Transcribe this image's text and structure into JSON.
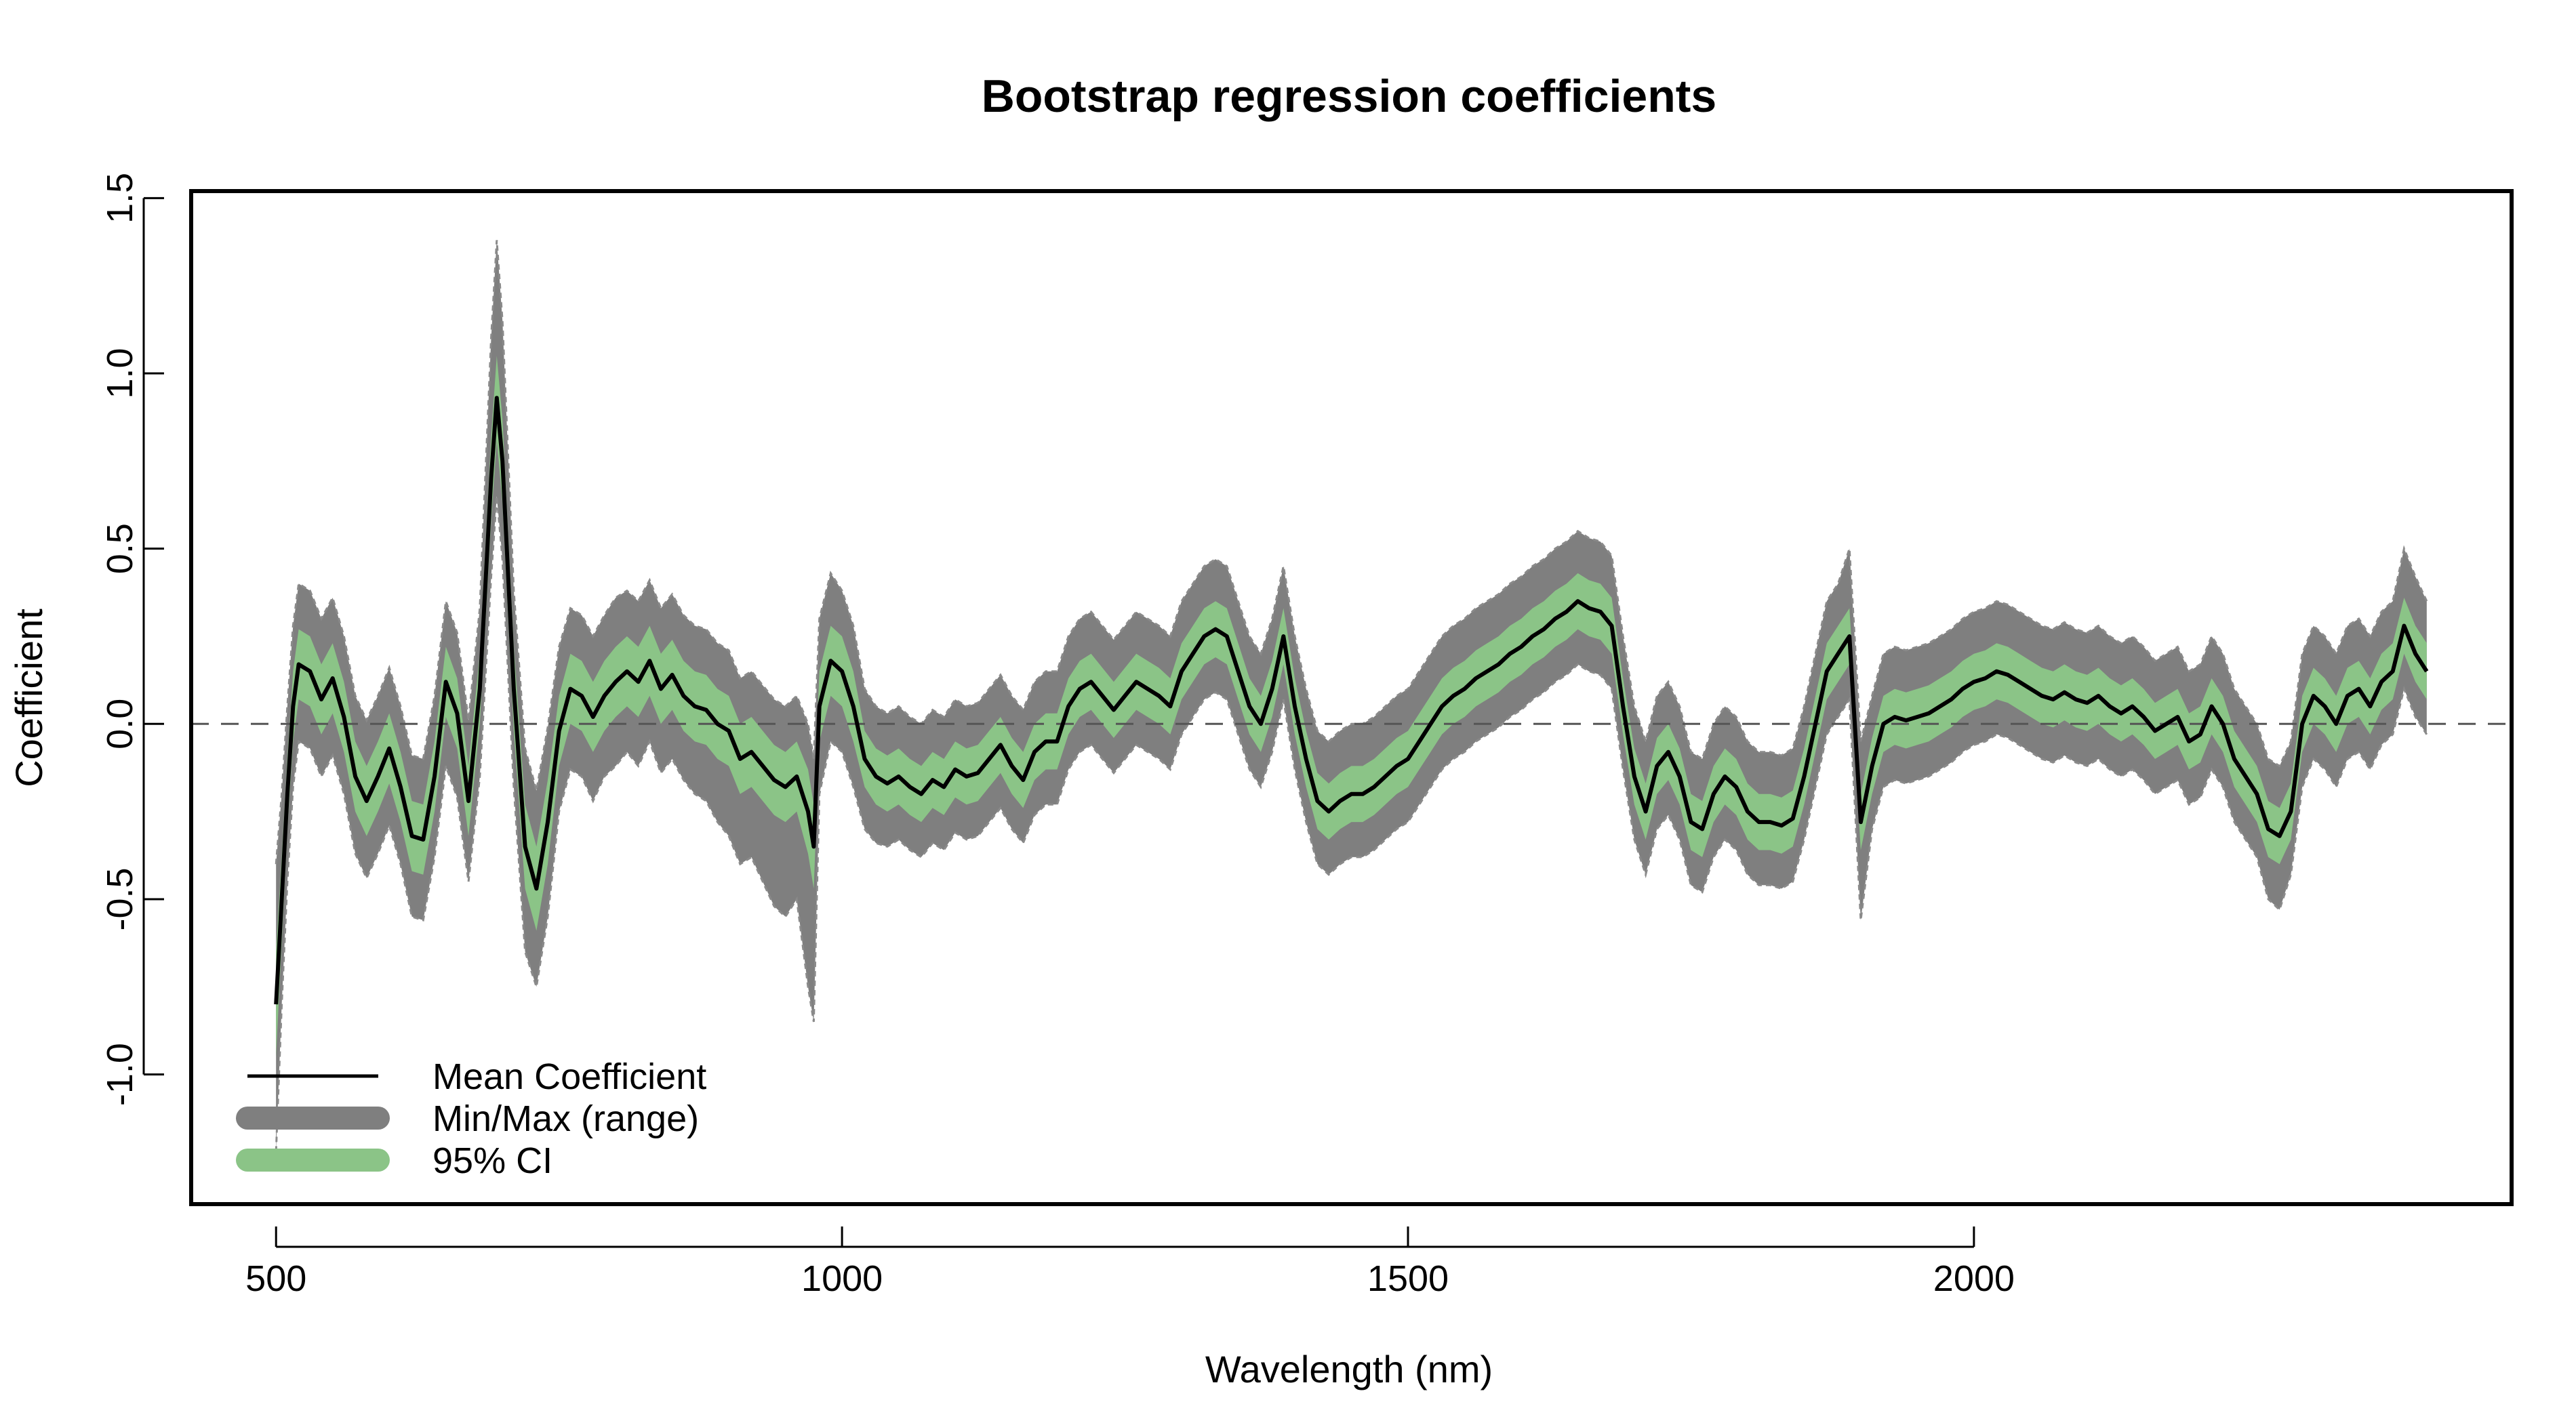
{
  "chart_data": {
    "type": "line",
    "title": "Bootstrap regression coefficients",
    "xlabel": "Wavelength (nm)",
    "ylabel": "Coefficient",
    "xlim": [
      425,
      2475
    ],
    "ylim": [
      -1.37,
      1.52
    ],
    "x_ticks": [
      500,
      1000,
      1500,
      2000
    ],
    "y_ticks": [
      -1.0,
      -0.5,
      0.0,
      0.5,
      1.0,
      1.5
    ],
    "x_tick_labels": [
      "500",
      "1000",
      "1500",
      "2000"
    ],
    "y_tick_labels": [
      "-1.0",
      "-0.5",
      "0.0",
      "0.5",
      "1.0",
      "1.5"
    ],
    "reference_line": {
      "y": 0.0,
      "style": "dashed"
    },
    "grid": false,
    "legend_position": "bottom-left",
    "legend": [
      {
        "label": "Mean Coefficient",
        "color": "#000000"
      },
      {
        "label": "Min/Max (range)",
        "color": "#7f7f7f"
      },
      {
        "label": "95% CI",
        "color": "#8bc487"
      }
    ],
    "colors": {
      "mean": "#000000",
      "range": "#7f7f7f",
      "ci": "#8bc487"
    },
    "x": [
      500,
      505,
      510,
      515,
      520,
      530,
      540,
      550,
      560,
      570,
      580,
      590,
      600,
      610,
      620,
      630,
      640,
      650,
      660,
      670,
      680,
      690,
      695,
      700,
      710,
      720,
      730,
      740,
      750,
      760,
      770,
      780,
      790,
      800,
      810,
      820,
      830,
      840,
      850,
      860,
      870,
      880,
      890,
      900,
      910,
      920,
      930,
      940,
      950,
      960,
      970,
      975,
      980,
      990,
      1000,
      1010,
      1020,
      1030,
      1040,
      1050,
      1060,
      1070,
      1080,
      1090,
      1100,
      1110,
      1120,
      1130,
      1140,
      1150,
      1160,
      1170,
      1180,
      1190,
      1200,
      1210,
      1220,
      1230,
      1240,
      1250,
      1260,
      1270,
      1280,
      1290,
      1300,
      1310,
      1320,
      1330,
      1340,
      1350,
      1360,
      1370,
      1380,
      1390,
      1400,
      1410,
      1420,
      1430,
      1440,
      1450,
      1460,
      1470,
      1480,
      1490,
      1500,
      1510,
      1520,
      1530,
      1540,
      1550,
      1560,
      1570,
      1580,
      1590,
      1600,
      1610,
      1620,
      1630,
      1640,
      1650,
      1660,
      1670,
      1680,
      1690,
      1700,
      1710,
      1720,
      1730,
      1740,
      1750,
      1760,
      1770,
      1780,
      1790,
      1800,
      1810,
      1820,
      1830,
      1840,
      1850,
      1860,
      1870,
      1880,
      1890,
      1900,
      1910,
      1920,
      1930,
      1940,
      1950,
      1960,
      1970,
      1980,
      1990,
      2000,
      2010,
      2020,
      2030,
      2040,
      2050,
      2060,
      2070,
      2080,
      2090,
      2100,
      2110,
      2120,
      2130,
      2140,
      2150,
      2160,
      2170,
      2180,
      2190,
      2200,
      2210,
      2220,
      2230,
      2240,
      2250,
      2260,
      2270,
      2280,
      2290,
      2300,
      2310,
      2320,
      2330,
      2340,
      2350,
      2360,
      2370,
      2380,
      2390,
      2400
    ],
    "series": [
      {
        "name": "Mean Coefficient",
        "values": [
          -0.8,
          -0.5,
          -0.2,
          0.05,
          0.17,
          0.15,
          0.07,
          0.13,
          0.02,
          -0.15,
          -0.22,
          -0.15,
          -0.07,
          -0.18,
          -0.32,
          -0.33,
          -0.15,
          0.12,
          0.03,
          -0.22,
          0.1,
          0.7,
          0.93,
          0.75,
          0.1,
          -0.35,
          -0.47,
          -0.28,
          -0.02,
          0.1,
          0.08,
          0.02,
          0.08,
          0.12,
          0.15,
          0.12,
          0.18,
          0.1,
          0.14,
          0.08,
          0.05,
          0.04,
          0.0,
          -0.02,
          -0.1,
          -0.08,
          -0.12,
          -0.16,
          -0.18,
          -0.15,
          -0.25,
          -0.35,
          0.05,
          0.18,
          0.15,
          0.05,
          -0.1,
          -0.15,
          -0.17,
          -0.15,
          -0.18,
          -0.2,
          -0.16,
          -0.18,
          -0.13,
          -0.15,
          -0.14,
          -0.1,
          -0.06,
          -0.12,
          -0.16,
          -0.08,
          -0.05,
          -0.05,
          0.05,
          0.1,
          0.12,
          0.08,
          0.04,
          0.08,
          0.12,
          0.1,
          0.08,
          0.05,
          0.15,
          0.2,
          0.25,
          0.27,
          0.25,
          0.15,
          0.05,
          0.0,
          0.1,
          0.25,
          0.05,
          -0.1,
          -0.22,
          -0.25,
          -0.22,
          -0.2,
          -0.2,
          -0.18,
          -0.15,
          -0.12,
          -0.1,
          -0.05,
          0.0,
          0.05,
          0.08,
          0.1,
          0.13,
          0.15,
          0.17,
          0.2,
          0.22,
          0.25,
          0.27,
          0.3,
          0.32,
          0.35,
          0.33,
          0.32,
          0.28,
          0.05,
          -0.15,
          -0.25,
          -0.12,
          -0.08,
          -0.15,
          -0.28,
          -0.3,
          -0.2,
          -0.15,
          -0.18,
          -0.25,
          -0.28,
          -0.28,
          -0.29,
          -0.27,
          -0.15,
          0.0,
          0.15,
          0.2,
          0.25,
          -0.28,
          -0.12,
          0.0,
          0.02,
          0.01,
          0.02,
          0.03,
          0.05,
          0.07,
          0.1,
          0.12,
          0.13,
          0.15,
          0.14,
          0.12,
          0.1,
          0.08,
          0.07,
          0.09,
          0.07,
          0.06,
          0.08,
          0.05,
          0.03,
          0.05,
          0.02,
          -0.02,
          0.0,
          0.02,
          -0.05,
          -0.03,
          0.05,
          0.0,
          -0.1,
          -0.15,
          -0.2,
          -0.3,
          -0.32,
          -0.25,
          0.0,
          0.08,
          0.05,
          0.0,
          0.08,
          0.1,
          0.05,
          0.12,
          0.15,
          0.28,
          0.2,
          0.15
        ]
      },
      {
        "name": "95% CI",
        "lower": [
          -0.95,
          -0.62,
          -0.3,
          -0.05,
          0.07,
          0.05,
          -0.03,
          0.03,
          -0.08,
          -0.25,
          -0.32,
          -0.25,
          -0.17,
          -0.28,
          -0.42,
          -0.43,
          -0.25,
          0.02,
          -0.07,
          -0.32,
          0.0,
          0.58,
          0.81,
          0.63,
          -0.02,
          -0.47,
          -0.59,
          -0.4,
          -0.12,
          0.0,
          -0.02,
          -0.08,
          -0.02,
          0.02,
          0.05,
          0.02,
          0.08,
          0.0,
          0.04,
          -0.02,
          -0.05,
          -0.06,
          -0.1,
          -0.12,
          -0.2,
          -0.18,
          -0.22,
          -0.26,
          -0.28,
          -0.25,
          -0.37,
          -0.47,
          -0.05,
          0.08,
          0.05,
          -0.05,
          -0.18,
          -0.23,
          -0.25,
          -0.23,
          -0.26,
          -0.28,
          -0.24,
          -0.26,
          -0.21,
          -0.23,
          -0.22,
          -0.18,
          -0.14,
          -0.2,
          -0.24,
          -0.16,
          -0.13,
          -0.13,
          -0.03,
          0.02,
          0.04,
          0.0,
          -0.04,
          0.0,
          0.04,
          0.02,
          0.0,
          -0.03,
          0.07,
          0.12,
          0.17,
          0.19,
          0.17,
          0.07,
          -0.03,
          -0.08,
          0.02,
          0.17,
          -0.03,
          -0.18,
          -0.3,
          -0.33,
          -0.3,
          -0.28,
          -0.28,
          -0.26,
          -0.23,
          -0.2,
          -0.18,
          -0.13,
          -0.08,
          -0.03,
          0.0,
          0.02,
          0.05,
          0.07,
          0.09,
          0.12,
          0.14,
          0.17,
          0.19,
          0.22,
          0.24,
          0.27,
          0.25,
          0.24,
          0.2,
          -0.03,
          -0.23,
          -0.33,
          -0.2,
          -0.16,
          -0.23,
          -0.36,
          -0.38,
          -0.28,
          -0.23,
          -0.26,
          -0.33,
          -0.36,
          -0.36,
          -0.37,
          -0.35,
          -0.23,
          -0.08,
          0.07,
          0.12,
          0.17,
          -0.36,
          -0.2,
          -0.08,
          -0.06,
          -0.07,
          -0.06,
          -0.05,
          -0.03,
          -0.01,
          0.02,
          0.04,
          0.05,
          0.07,
          0.06,
          0.04,
          0.02,
          0.0,
          -0.01,
          0.01,
          -0.01,
          -0.02,
          0.0,
          -0.03,
          -0.05,
          -0.03,
          -0.06,
          -0.1,
          -0.08,
          -0.06,
          -0.13,
          -0.11,
          -0.03,
          -0.08,
          -0.18,
          -0.23,
          -0.28,
          -0.38,
          -0.4,
          -0.33,
          -0.08,
          0.0,
          -0.03,
          -0.08,
          0.0,
          0.02,
          -0.03,
          0.04,
          0.07,
          0.2,
          0.12,
          0.07
        ],
        "upper": [
          -0.65,
          -0.38,
          -0.1,
          0.15,
          0.27,
          0.25,
          0.17,
          0.23,
          0.12,
          -0.05,
          -0.12,
          -0.05,
          0.03,
          -0.08,
          -0.22,
          -0.23,
          -0.05,
          0.22,
          0.13,
          -0.12,
          0.2,
          0.82,
          1.05,
          0.87,
          0.22,
          -0.23,
          -0.35,
          -0.16,
          0.08,
          0.2,
          0.18,
          0.12,
          0.18,
          0.22,
          0.25,
          0.22,
          0.28,
          0.2,
          0.24,
          0.18,
          0.15,
          0.14,
          0.1,
          0.08,
          0.0,
          0.02,
          -0.02,
          -0.06,
          -0.08,
          -0.05,
          -0.13,
          -0.23,
          0.15,
          0.28,
          0.25,
          0.15,
          -0.02,
          -0.07,
          -0.09,
          -0.07,
          -0.1,
          -0.12,
          -0.08,
          -0.1,
          -0.05,
          -0.07,
          -0.06,
          -0.02,
          0.02,
          -0.04,
          -0.08,
          0.0,
          0.03,
          0.03,
          0.13,
          0.18,
          0.2,
          0.16,
          0.12,
          0.16,
          0.2,
          0.18,
          0.16,
          0.13,
          0.23,
          0.28,
          0.33,
          0.35,
          0.33,
          0.23,
          0.13,
          0.08,
          0.18,
          0.33,
          0.13,
          -0.02,
          -0.14,
          -0.17,
          -0.14,
          -0.12,
          -0.12,
          -0.1,
          -0.07,
          -0.04,
          -0.02,
          0.03,
          0.08,
          0.13,
          0.16,
          0.18,
          0.21,
          0.23,
          0.25,
          0.28,
          0.3,
          0.33,
          0.35,
          0.38,
          0.4,
          0.43,
          0.41,
          0.4,
          0.36,
          0.13,
          -0.07,
          -0.17,
          -0.04,
          0.0,
          -0.07,
          -0.2,
          -0.22,
          -0.12,
          -0.07,
          -0.1,
          -0.17,
          -0.2,
          -0.2,
          -0.21,
          -0.19,
          -0.07,
          0.08,
          0.23,
          0.28,
          0.33,
          -0.2,
          -0.04,
          0.08,
          0.1,
          0.09,
          0.1,
          0.11,
          0.13,
          0.15,
          0.18,
          0.2,
          0.21,
          0.23,
          0.22,
          0.2,
          0.18,
          0.16,
          0.15,
          0.17,
          0.15,
          0.14,
          0.16,
          0.13,
          0.11,
          0.13,
          0.1,
          0.06,
          0.08,
          0.1,
          0.03,
          0.05,
          0.13,
          0.08,
          -0.02,
          -0.07,
          -0.12,
          -0.22,
          -0.24,
          -0.17,
          0.08,
          0.16,
          0.13,
          0.08,
          0.16,
          0.18,
          0.13,
          0.2,
          0.23,
          0.36,
          0.28,
          0.23
        ]
      },
      {
        "name": "Min/Max (range)",
        "lower": [
          -1.22,
          -0.8,
          -0.45,
          -0.18,
          -0.05,
          -0.07,
          -0.15,
          -0.09,
          -0.2,
          -0.37,
          -0.44,
          -0.37,
          -0.29,
          -0.4,
          -0.55,
          -0.56,
          -0.38,
          -0.12,
          -0.21,
          -0.45,
          -0.15,
          0.42,
          0.65,
          0.47,
          -0.18,
          -0.65,
          -0.75,
          -0.55,
          -0.25,
          -0.13,
          -0.15,
          -0.22,
          -0.15,
          -0.12,
          -0.08,
          -0.12,
          -0.05,
          -0.14,
          -0.1,
          -0.16,
          -0.2,
          -0.22,
          -0.28,
          -0.32,
          -0.4,
          -0.38,
          -0.45,
          -0.52,
          -0.55,
          -0.5,
          -0.75,
          -0.85,
          -0.2,
          -0.05,
          -0.08,
          -0.18,
          -0.3,
          -0.34,
          -0.35,
          -0.33,
          -0.36,
          -0.38,
          -0.34,
          -0.36,
          -0.31,
          -0.33,
          -0.32,
          -0.28,
          -0.24,
          -0.3,
          -0.34,
          -0.26,
          -0.23,
          -0.23,
          -0.13,
          -0.08,
          -0.06,
          -0.1,
          -0.14,
          -0.1,
          -0.06,
          -0.08,
          -0.1,
          -0.13,
          -0.03,
          0.02,
          0.07,
          0.09,
          0.07,
          -0.03,
          -0.13,
          -0.18,
          -0.08,
          0.07,
          -0.13,
          -0.28,
          -0.4,
          -0.43,
          -0.4,
          -0.38,
          -0.38,
          -0.36,
          -0.33,
          -0.3,
          -0.28,
          -0.23,
          -0.18,
          -0.13,
          -0.1,
          -0.08,
          -0.05,
          -0.03,
          -0.01,
          0.02,
          0.04,
          0.07,
          0.09,
          0.12,
          0.14,
          0.17,
          0.15,
          0.14,
          0.1,
          -0.13,
          -0.33,
          -0.43,
          -0.3,
          -0.26,
          -0.33,
          -0.46,
          -0.48,
          -0.38,
          -0.33,
          -0.36,
          -0.43,
          -0.46,
          -0.46,
          -0.47,
          -0.45,
          -0.33,
          -0.18,
          -0.03,
          0.02,
          0.07,
          -0.56,
          -0.3,
          -0.18,
          -0.16,
          -0.17,
          -0.16,
          -0.15,
          -0.13,
          -0.11,
          -0.08,
          -0.06,
          -0.05,
          -0.03,
          -0.04,
          -0.06,
          -0.08,
          -0.1,
          -0.11,
          -0.09,
          -0.11,
          -0.12,
          -0.1,
          -0.13,
          -0.15,
          -0.13,
          -0.16,
          -0.2,
          -0.18,
          -0.16,
          -0.23,
          -0.21,
          -0.13,
          -0.18,
          -0.28,
          -0.33,
          -0.38,
          -0.5,
          -0.53,
          -0.43,
          -0.18,
          -0.1,
          -0.13,
          -0.18,
          -0.1,
          -0.08,
          -0.13,
          -0.06,
          -0.03,
          0.1,
          0.02,
          -0.03
        ],
        "upper": [
          -0.4,
          -0.2,
          0.05,
          0.28,
          0.4,
          0.38,
          0.3,
          0.36,
          0.25,
          0.08,
          0.01,
          0.08,
          0.16,
          0.05,
          -0.09,
          -0.1,
          0.08,
          0.35,
          0.26,
          0.01,
          0.33,
          1.1,
          1.38,
          1.15,
          0.38,
          -0.07,
          -0.19,
          -0.01,
          0.22,
          0.33,
          0.31,
          0.25,
          0.31,
          0.36,
          0.38,
          0.35,
          0.41,
          0.33,
          0.37,
          0.31,
          0.28,
          0.27,
          0.23,
          0.21,
          0.13,
          0.15,
          0.11,
          0.07,
          0.05,
          0.08,
          0.0,
          -0.1,
          0.3,
          0.43,
          0.38,
          0.28,
          0.1,
          0.05,
          0.03,
          0.05,
          0.02,
          0.0,
          0.04,
          0.02,
          0.07,
          0.05,
          0.06,
          0.1,
          0.14,
          0.08,
          0.04,
          0.12,
          0.15,
          0.15,
          0.25,
          0.3,
          0.32,
          0.28,
          0.24,
          0.28,
          0.32,
          0.3,
          0.28,
          0.25,
          0.35,
          0.4,
          0.45,
          0.47,
          0.45,
          0.35,
          0.25,
          0.2,
          0.3,
          0.45,
          0.25,
          0.1,
          -0.02,
          -0.05,
          -0.02,
          0.0,
          0.0,
          0.02,
          0.05,
          0.08,
          0.1,
          0.15,
          0.2,
          0.25,
          0.28,
          0.3,
          0.33,
          0.35,
          0.37,
          0.4,
          0.42,
          0.45,
          0.47,
          0.5,
          0.52,
          0.55,
          0.53,
          0.52,
          0.48,
          0.25,
          0.05,
          -0.05,
          0.08,
          0.12,
          0.05,
          -0.08,
          -0.1,
          0.0,
          0.05,
          0.02,
          -0.05,
          -0.08,
          -0.08,
          -0.09,
          -0.07,
          0.05,
          0.2,
          0.35,
          0.4,
          0.5,
          -0.05,
          0.08,
          0.2,
          0.22,
          0.21,
          0.22,
          0.23,
          0.25,
          0.27,
          0.3,
          0.32,
          0.33,
          0.35,
          0.34,
          0.32,
          0.3,
          0.28,
          0.27,
          0.29,
          0.27,
          0.26,
          0.28,
          0.25,
          0.23,
          0.25,
          0.22,
          0.18,
          0.2,
          0.22,
          0.15,
          0.17,
          0.25,
          0.2,
          0.1,
          0.05,
          0.0,
          -0.1,
          -0.12,
          -0.05,
          0.2,
          0.28,
          0.25,
          0.2,
          0.28,
          0.3,
          0.25,
          0.32,
          0.35,
          0.5,
          0.42,
          0.35
        ]
      }
    ]
  }
}
